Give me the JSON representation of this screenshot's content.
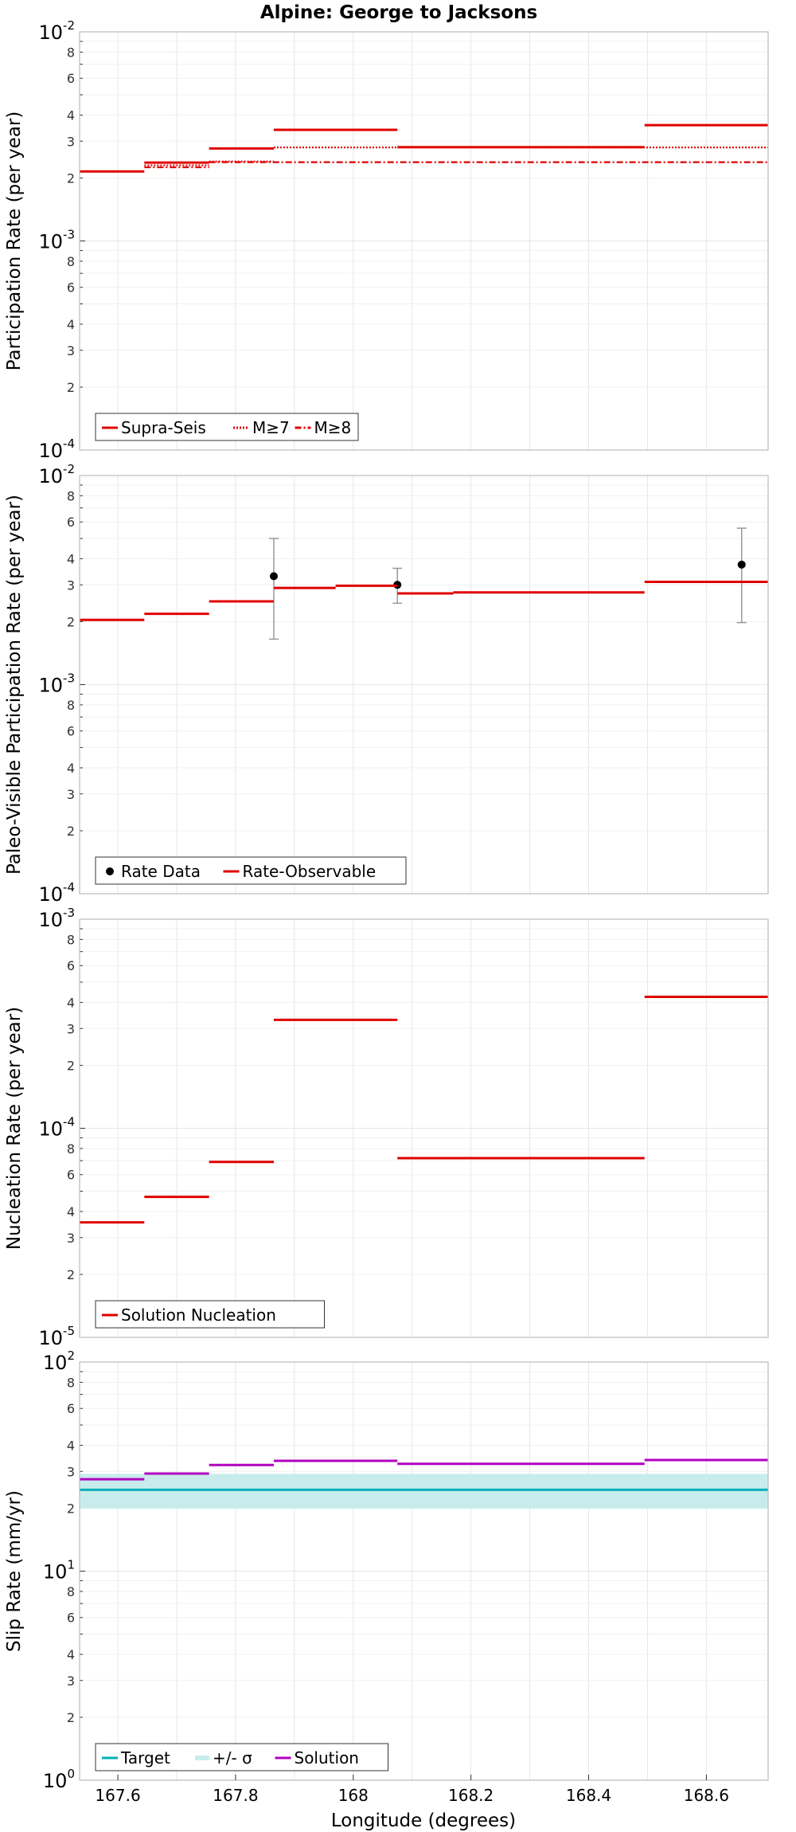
{
  "title": "Alpine: George to Jacksons",
  "xlabel": "Longitude (degrees)",
  "x_ticks": [
    "167.6",
    "167.8",
    "168",
    "168.2",
    "168.4",
    "168.6"
  ],
  "colors": {
    "red": "#e00000",
    "teal": "#00b0b8",
    "band": "#c8ecec",
    "purple": "#b000c0",
    "black": "#000000",
    "err": "#999999"
  },
  "chart_data": [
    {
      "type": "line",
      "name": "participation",
      "ylabel": "Participation Rate (per year)",
      "ylim": [
        0.0001,
        0.01
      ],
      "yscale": "log",
      "xlim": [
        167.535,
        168.705
      ],
      "y_ticks_major": [
        {
          "base": "10",
          "exp": "-4"
        },
        {
          "base": "10",
          "exp": "-3"
        },
        {
          "base": "10",
          "exp": "-2"
        }
      ],
      "y_ticks_minor": [
        "2",
        "3",
        "4",
        "6",
        "8"
      ],
      "legend": "bottom-left",
      "series": [
        {
          "name": "Supra-Seis",
          "style": "solid",
          "color": "#e00000",
          "steps": [
            [
              167.535,
              167.645,
              0.00215
            ],
            [
              167.645,
              167.755,
              0.00237
            ],
            [
              167.755,
              167.865,
              0.00277
            ],
            [
              167.865,
              168.075,
              0.0034
            ],
            [
              168.075,
              168.495,
              0.00281
            ],
            [
              168.495,
              168.705,
              0.00358
            ]
          ]
        },
        {
          "name": "M≥7",
          "style": "dotted",
          "color": "#e00000",
          "steps": [
            [
              167.645,
              167.755,
              0.0023
            ],
            [
              167.755,
              167.865,
              0.0024
            ],
            [
              167.865,
              168.705,
              0.0028
            ]
          ]
        },
        {
          "name": "M≥8",
          "style": "dashdot",
          "color": "#e00000",
          "steps": [
            [
              167.645,
              167.755,
              0.00225
            ],
            [
              167.755,
              168.705,
              0.00238
            ]
          ]
        }
      ]
    },
    {
      "type": "line",
      "name": "paleo",
      "ylabel": "Paleo-Visible Participation Rate (per year)",
      "ylim": [
        0.0001,
        0.01
      ],
      "yscale": "log",
      "xlim": [
        167.535,
        168.705
      ],
      "y_ticks_major": [
        {
          "base": "10",
          "exp": "-4"
        },
        {
          "base": "10",
          "exp": "-3"
        },
        {
          "base": "10",
          "exp": "-2"
        }
      ],
      "y_ticks_minor": [
        "2",
        "3",
        "4",
        "6",
        "8"
      ],
      "legend": "bottom-left",
      "series": [
        {
          "name": "Rate Data",
          "style": "points",
          "color": "#000000",
          "points": [
            [
              167.865,
              0.0033,
              0.00165,
              0.005
            ],
            [
              168.075,
              0.003,
              0.00245,
              0.0036
            ],
            [
              168.66,
              0.00375,
              0.00198,
              0.0056
            ]
          ]
        },
        {
          "name": "Rate-Observable",
          "style": "solid",
          "color": "#e00000",
          "steps": [
            [
              167.535,
              167.645,
              0.00204
            ],
            [
              167.645,
              167.755,
              0.00218
            ],
            [
              167.755,
              167.865,
              0.0025
            ],
            [
              167.865,
              167.97,
              0.0029
            ],
            [
              167.97,
              168.075,
              0.00297
            ],
            [
              168.075,
              168.17,
              0.00273
            ],
            [
              168.17,
              168.495,
              0.00276
            ],
            [
              168.495,
              168.705,
              0.0031
            ]
          ]
        }
      ]
    },
    {
      "type": "line",
      "name": "nucleation",
      "ylabel": "Nucleation Rate (per year)",
      "ylim": [
        1e-05,
        0.001
      ],
      "yscale": "log",
      "xlim": [
        167.535,
        168.705
      ],
      "y_ticks_major": [
        {
          "base": "10",
          "exp": "-5"
        },
        {
          "base": "10",
          "exp": "-4"
        },
        {
          "base": "10",
          "exp": "-3"
        }
      ],
      "y_ticks_minor": [
        "2",
        "3",
        "4",
        "6",
        "8"
      ],
      "legend": "bottom-left",
      "series": [
        {
          "name": "Solution Nucleation",
          "style": "solid",
          "color": "#e00000",
          "steps": [
            [
              167.535,
              167.645,
              3.55e-05
            ],
            [
              167.645,
              167.755,
              4.7e-05
            ],
            [
              167.755,
              167.865,
              6.9e-05
            ],
            [
              167.865,
              168.075,
              0.00033
            ],
            [
              168.075,
              168.495,
              7.2e-05
            ],
            [
              168.495,
              168.705,
              0.000425
            ]
          ]
        }
      ]
    },
    {
      "type": "line",
      "name": "slip",
      "ylabel": "Slip Rate (mm/yr)",
      "ylim": [
        1,
        100
      ],
      "yscale": "log",
      "xlim": [
        167.535,
        168.705
      ],
      "y_ticks_major": [
        {
          "base": "10",
          "exp": "0"
        },
        {
          "base": "10",
          "exp": "1"
        },
        {
          "base": "10",
          "exp": "2"
        }
      ],
      "y_ticks_minor": [
        "2",
        "3",
        "4",
        "6",
        "8"
      ],
      "legend": "bottom-left",
      "series": [
        {
          "name": "Target",
          "style": "solid",
          "color": "#00b0b8",
          "steps": [
            [
              167.535,
              168.705,
              24.5
            ]
          ]
        },
        {
          "name": "+/- σ",
          "style": "band",
          "color": "#c8ecec",
          "band": [
            167.535,
            168.705,
            19.9,
            29.2
          ]
        },
        {
          "name": "Solution",
          "style": "solid",
          "color": "#b000c0",
          "steps": [
            [
              167.535,
              167.645,
              27.5
            ],
            [
              167.645,
              167.755,
              29.3
            ],
            [
              167.755,
              167.865,
              32.2
            ],
            [
              167.865,
              168.075,
              33.7
            ],
            [
              168.075,
              168.495,
              32.6
            ],
            [
              168.495,
              168.705,
              34.0
            ]
          ]
        }
      ]
    }
  ]
}
